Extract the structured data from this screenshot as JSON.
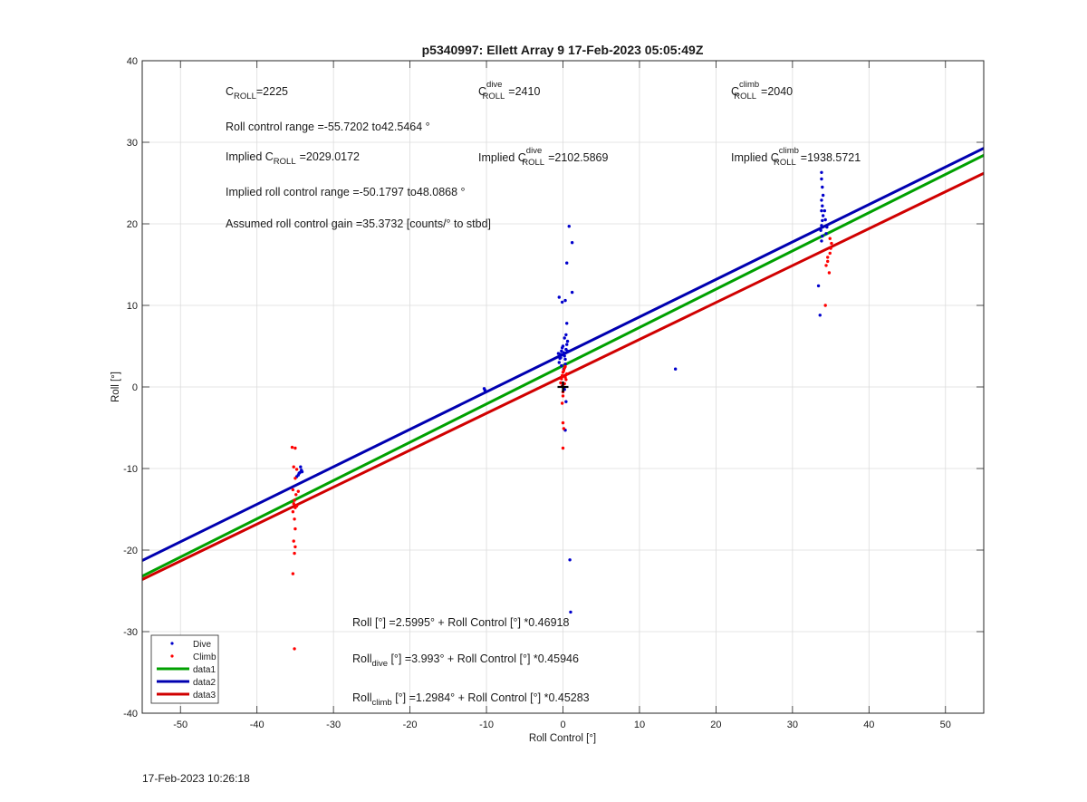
{
  "chart_data": {
    "type": "scatter",
    "title": "p5340997: Ellett Array 9 17-Feb-2023 05:05:49Z",
    "xlabel": "Roll Control [°]",
    "ylabel": "Roll [°]",
    "xlim": [
      -55,
      55
    ],
    "ylim": [
      -40,
      40
    ],
    "xticks": [
      -50,
      -40,
      -30,
      -20,
      -10,
      0,
      10,
      20,
      30,
      40,
      50
    ],
    "yticks": [
      -40,
      -30,
      -20,
      -10,
      0,
      10,
      20,
      30,
      40
    ],
    "grid": true,
    "legend_location": "bottom-left",
    "legend": [
      "Dive",
      "Climb",
      "data1",
      "data2",
      "data3"
    ],
    "series": [
      {
        "name": "Dive",
        "kind": "points",
        "color": "#0000cc",
        "points": [
          [
            -34.6,
            -10.8
          ],
          [
            -34.4,
            -10.5
          ],
          [
            -34.2,
            -10.2
          ],
          [
            -34.8,
            -11.0
          ],
          [
            -34.3,
            -9.8
          ],
          [
            -34.5,
            -10.6
          ],
          [
            -34.1,
            -10.4
          ],
          [
            -10.3,
            -0.2
          ],
          [
            -10.2,
            -0.4
          ],
          [
            -0.5,
            3.0
          ],
          [
            -0.4,
            3.5
          ],
          [
            -0.3,
            4.0
          ],
          [
            -0.2,
            4.4
          ],
          [
            -0.1,
            4.8
          ],
          [
            0.0,
            5.0
          ],
          [
            0.1,
            4.2
          ],
          [
            0.2,
            3.8
          ],
          [
            0.3,
            3.4
          ],
          [
            0.4,
            4.6
          ],
          [
            0.5,
            5.2
          ],
          [
            0.6,
            5.6
          ],
          [
            0.2,
            6.0
          ],
          [
            0.4,
            6.4
          ],
          [
            0.5,
            7.8
          ],
          [
            -0.6,
            4.1
          ],
          [
            -0.2,
            2.6
          ],
          [
            0.1,
            2.2
          ],
          [
            0.3,
            2.8
          ],
          [
            -0.5,
            11.0
          ],
          [
            -0.1,
            10.4
          ],
          [
            0.3,
            10.6
          ],
          [
            0.8,
            19.7
          ],
          [
            1.2,
            17.7
          ],
          [
            0.5,
            15.2
          ],
          [
            1.2,
            11.6
          ],
          [
            -0.1,
            0.1
          ],
          [
            0.2,
            -0.3
          ],
          [
            0.4,
            -1.8
          ],
          [
            0.3,
            -5.3
          ],
          [
            0.9,
            -21.2
          ],
          [
            1.0,
            -27.6
          ],
          [
            -0.3,
            3.6
          ],
          [
            0.6,
            4.4
          ],
          [
            14.7,
            2.2
          ],
          [
            33.6,
            8.8
          ],
          [
            33.4,
            12.4
          ],
          [
            33.8,
            17.9
          ],
          [
            33.9,
            18.5
          ],
          [
            33.7,
            19.2
          ],
          [
            33.8,
            19.8
          ],
          [
            33.9,
            20.4
          ],
          [
            34.0,
            21.0
          ],
          [
            33.8,
            21.6
          ],
          [
            33.9,
            22.2
          ],
          [
            33.8,
            22.9
          ],
          [
            34.0,
            23.5
          ],
          [
            33.9,
            24.5
          ],
          [
            33.8,
            25.5
          ],
          [
            33.8,
            26.3
          ],
          [
            34.3,
            20.5
          ],
          [
            34.5,
            19.6
          ],
          [
            34.4,
            18.8
          ],
          [
            34.2,
            21.6
          ]
        ]
      },
      {
        "name": "Climb",
        "kind": "points",
        "color": "#ff0000",
        "points": [
          [
            -35.4,
            -7.4
          ],
          [
            -35.0,
            -7.5
          ],
          [
            -35.2,
            -9.8
          ],
          [
            -34.8,
            -10.1
          ],
          [
            -35.0,
            -11.2
          ],
          [
            -35.3,
            -12.6
          ],
          [
            -34.9,
            -13.2
          ],
          [
            -35.1,
            -13.9
          ],
          [
            -35.2,
            -14.3
          ],
          [
            -35.0,
            -14.8
          ],
          [
            -35.3,
            -15.3
          ],
          [
            -35.1,
            -16.2
          ],
          [
            -35.0,
            -17.4
          ],
          [
            -35.2,
            -18.9
          ],
          [
            -35.0,
            -19.6
          ],
          [
            -35.1,
            -20.4
          ],
          [
            -35.3,
            -22.9
          ],
          [
            -35.1,
            -32.1
          ],
          [
            -34.6,
            -12.8
          ],
          [
            -34.8,
            -14.6
          ],
          [
            -0.3,
            0.5
          ],
          [
            -0.2,
            1.0
          ],
          [
            -0.1,
            1.4
          ],
          [
            0.0,
            1.8
          ],
          [
            0.1,
            2.0
          ],
          [
            0.2,
            2.3
          ],
          [
            0.3,
            1.2
          ],
          [
            0.4,
            0.9
          ],
          [
            0.2,
            0.4
          ],
          [
            -0.1,
            0.1
          ],
          [
            0.0,
            -0.6
          ],
          [
            0.0,
            -1.1
          ],
          [
            -0.1,
            -2.0
          ],
          [
            0.0,
            -4.4
          ],
          [
            0.1,
            -5.1
          ],
          [
            0.0,
            -7.5
          ],
          [
            0.3,
            2.5
          ],
          [
            0.5,
            1.6
          ],
          [
            34.4,
            14.9
          ],
          [
            34.6,
            15.4
          ],
          [
            34.9,
            16.4
          ],
          [
            35.0,
            17.0
          ],
          [
            35.1,
            17.6
          ],
          [
            34.9,
            18.2
          ],
          [
            34.8,
            14.0
          ],
          [
            34.3,
            10.0
          ],
          [
            34.6,
            15.9
          ]
        ]
      },
      {
        "name": "data1",
        "kind": "line",
        "color": "#00a000",
        "intercept": 2.5995,
        "slope": 0.46918
      },
      {
        "name": "data2",
        "kind": "line",
        "color": "#0000b0",
        "intercept": 3.993,
        "slope": 0.45946
      },
      {
        "name": "data3",
        "kind": "line",
        "color": "#d00000",
        "intercept": 1.2984,
        "slope": 0.45283
      }
    ],
    "marker": {
      "label": "+",
      "x": 0,
      "y": 0,
      "color": "#000000"
    },
    "annotations": {
      "c_roll": {
        "pre": "C",
        "sub": "ROLL",
        "post": "=2225"
      },
      "c_roll_dive": {
        "pre": "C",
        "sup": "dive",
        "sub": "ROLL",
        "post": "=2410"
      },
      "c_roll_climb": {
        "pre": "C",
        "sup": "climb",
        "sub": "ROLL",
        "post": "=2040"
      },
      "roll_range": "Roll control range =-55.7202 to42.5464 °",
      "implied_c": {
        "pre": "Implied C",
        "sub": "ROLL",
        "post": "=2029.0172"
      },
      "implied_c_dive": {
        "pre": "Implied C",
        "sup": "dive",
        "sub": "ROLL",
        "post": "=2102.5869"
      },
      "implied_c_climb": {
        "pre": "Implied C",
        "sup": "climb",
        "sub": "ROLL",
        "post": "=1938.5721"
      },
      "implied_range": "Implied roll control range =-50.1797 to48.0868 °",
      "gain": "Assumed roll control gain =35.3732 [counts/° to stbd]",
      "fit_all": "Roll [°] =2.5995° + Roll Control [°] *0.46918",
      "fit_dive": {
        "pre": "Roll",
        "sub": "dive",
        "post": " [°] =3.993° + Roll Control [°] *0.45946"
      },
      "fit_climb": {
        "pre": "Roll",
        "sub": "climb",
        "post": " [°] =1.2984° + Roll Control [°] *0.45283"
      }
    }
  },
  "footer": {
    "timestamp": "17-Feb-2023 10:26:18"
  }
}
